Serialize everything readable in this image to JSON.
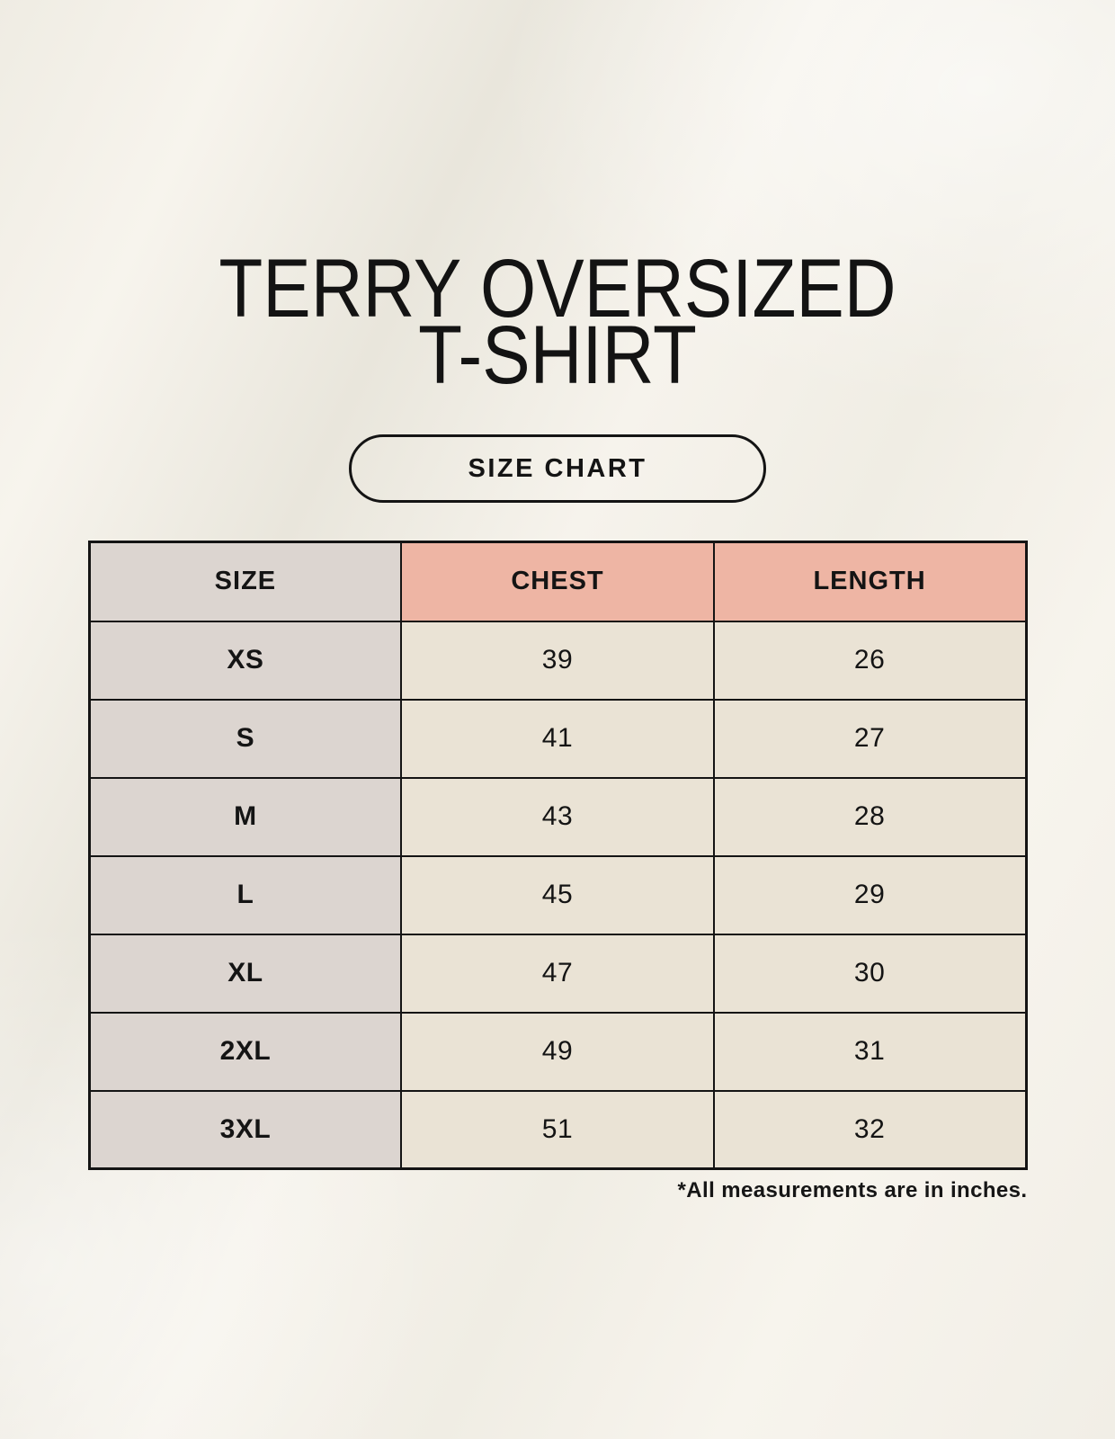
{
  "header": {
    "title_line1": "TERRY OVERSIZED",
    "title_line2": "T-SHIRT",
    "size_chart_label": "SIZE CHART"
  },
  "chart_data": {
    "type": "table",
    "title": "TERRY OVERSIZED T-SHIRT",
    "columns": [
      "SIZE",
      "CHEST",
      "LENGTH"
    ],
    "rows": [
      {
        "size": "XS",
        "chest": "39",
        "length": "26"
      },
      {
        "size": "S",
        "chest": "41",
        "length": "27"
      },
      {
        "size": "M",
        "chest": "43",
        "length": "28"
      },
      {
        "size": "L",
        "chest": "45",
        "length": "29"
      },
      {
        "size": "XL",
        "chest": "47",
        "length": "30"
      },
      {
        "size": "2XL",
        "chest": "49",
        "length": "31"
      },
      {
        "size": "3XL",
        "chest": "51",
        "length": "32"
      }
    ],
    "units": "inches",
    "note": "*All measurements are in inches."
  },
  "colors": {
    "background": "#f4f1e9",
    "size_column_bg": "#dcd5d0",
    "header_accent_bg": "#eeb5a4",
    "cell_bg": "#eae3d5",
    "border": "#141414",
    "text": "#141414"
  }
}
